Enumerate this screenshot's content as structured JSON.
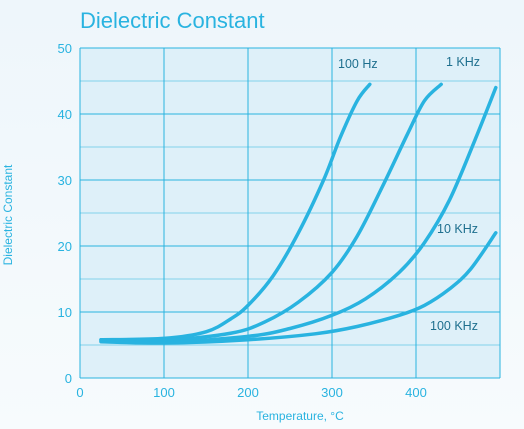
{
  "chart_data": {
    "type": "line",
    "title": "Dielectric Constant",
    "xlabel": "Temperature, °C",
    "ylabel": "Dielectric Constant",
    "xlim": [
      0,
      500
    ],
    "ylim": [
      0,
      50
    ],
    "xticks": [
      0,
      100,
      200,
      300,
      400
    ],
    "yticks": [
      0,
      10,
      20,
      30,
      40,
      50
    ],
    "grid": true,
    "line_color": "#29b3e0",
    "plot_background": "#def0f9",
    "grid_color": "#29b3e0",
    "series": [
      {
        "name": "100 Hz",
        "x": [
          25,
          100,
          150,
          180,
          200,
          230,
          260,
          290,
          310,
          330,
          345
        ],
        "y": [
          5.8,
          6.0,
          7.0,
          9.0,
          11.0,
          15.5,
          22.0,
          30.0,
          36.5,
          42.0,
          44.5
        ]
      },
      {
        "name": "1 KHz",
        "x": [
          25,
          100,
          180,
          220,
          260,
          300,
          330,
          360,
          390,
          410,
          430
        ],
        "y": [
          5.8,
          5.7,
          6.8,
          8.5,
          11.5,
          16.0,
          21.5,
          29.0,
          37.0,
          42.0,
          44.5
        ]
      },
      {
        "name": "10 KHz",
        "x": [
          25,
          100,
          200,
          250,
          300,
          340,
          380,
          410,
          440,
          470,
          495
        ],
        "y": [
          5.6,
          5.4,
          6.3,
          7.5,
          9.5,
          12.0,
          16.0,
          20.5,
          27.0,
          36.0,
          44.0
        ]
      },
      {
        "name": "100 KHz",
        "x": [
          25,
          100,
          200,
          280,
          330,
          380,
          410,
          440,
          465,
          495
        ],
        "y": [
          5.5,
          5.3,
          5.8,
          6.7,
          7.8,
          9.5,
          11.0,
          13.5,
          16.5,
          22.0
        ]
      }
    ]
  }
}
